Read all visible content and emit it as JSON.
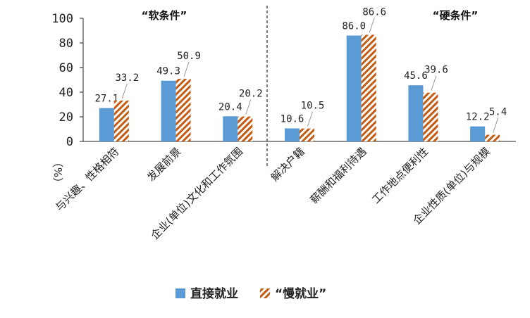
{
  "chart_data": {
    "type": "bar",
    "unit_label": "（%）",
    "group_labels": [
      "“软条件”",
      "“硬条件”"
    ],
    "categories": [
      "与兴趣、性格相符",
      "发展前景",
      "企业(单位)文化和工作氛围",
      "解决户籍",
      "薪酬和福利待遇",
      "工作地点便利性",
      "企业性质(单位)与规模"
    ],
    "series": [
      {
        "name": "直接就业",
        "values": [
          27.1,
          49.3,
          20.4,
          10.6,
          86.0,
          45.6,
          12.2
        ],
        "labels": [
          "27.1",
          "49.3",
          "20.4",
          "10.6",
          "86.0",
          "45.6",
          "12.2"
        ]
      },
      {
        "name": "“慢就业”",
        "values": [
          33.2,
          50.9,
          20.2,
          10.5,
          86.6,
          39.6,
          5.4
        ],
        "labels": [
          "33.2",
          "50.9",
          "20.2",
          "10.5",
          "86.6",
          "39.6",
          "5.4"
        ]
      }
    ],
    "ylim": [
      0,
      100
    ],
    "yticks": [
      "0",
      "20",
      "40",
      "60",
      "80",
      "100"
    ],
    "grid": false,
    "divider_after_category": 3,
    "legend_position": "bottom-center",
    "colors": {
      "direct": "#5b9bd5",
      "slow_stripe": "#c55a11",
      "slow_bg": "#ffffff"
    }
  }
}
